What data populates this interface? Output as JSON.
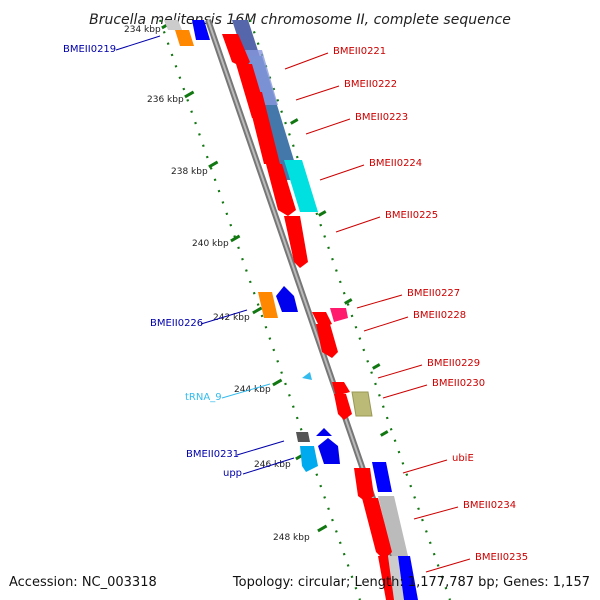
{
  "title": "Brucella melitensis 16M chromosome II, complete sequence",
  "accession": "Accession: NC_003318",
  "topology": "Topology: circular; Length: 1,177,787 bp; Genes: 1,157",
  "kbp_labels": [
    "234 kbp",
    "236 kbp",
    "238 kbp",
    "240 kbp",
    "242 kbp",
    "244 kbp",
    "246 kbp",
    "248 kbp"
  ],
  "genes_right": [
    "BMEII0221",
    "BMEII0222",
    "BMEII0223",
    "BMEII0224",
    "BMEII0225",
    "BMEII0227",
    "BMEII0228",
    "BMEII0229",
    "BMEII0230",
    "ubiE",
    "BMEII0234",
    "BMEII0235"
  ],
  "genes_left": [
    "BMEII0219",
    "BMEII0226",
    "tRNA_9",
    "BMEII0231",
    "upp"
  ],
  "colors": {
    "cds_forward": "#ff0000",
    "cds_reverse": "#ff0000",
    "left_label": "#0000aa",
    "right_label": "#cc0000",
    "trna": "#33bbee",
    "tick": "#117711",
    "backbone": "#888888"
  }
}
